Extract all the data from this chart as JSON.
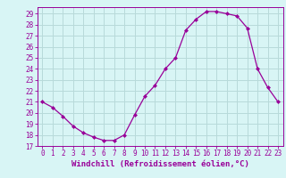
{
  "x": [
    0,
    1,
    2,
    3,
    4,
    5,
    6,
    7,
    8,
    9,
    10,
    11,
    12,
    13,
    14,
    15,
    16,
    17,
    18,
    19,
    20,
    21,
    22,
    23
  ],
  "y": [
    21.0,
    20.5,
    19.7,
    18.8,
    18.2,
    17.8,
    17.5,
    17.5,
    18.0,
    19.8,
    21.5,
    22.5,
    24.0,
    25.0,
    27.5,
    28.5,
    29.2,
    29.2,
    29.0,
    28.8,
    27.7,
    24.0,
    22.3,
    21.0
  ],
  "line_color": "#990099",
  "marker": "D",
  "marker_size": 2.0,
  "bg_color": "#d8f5f5",
  "grid_color": "#b8dada",
  "xlabel": "Windchill (Refroidissement éolien,°C)",
  "xlabel_color": "#990099",
  "tick_color": "#990099",
  "ylim": [
    17,
    29.6
  ],
  "xlim": [
    -0.5,
    23.5
  ],
  "yticks": [
    17,
    18,
    19,
    20,
    21,
    22,
    23,
    24,
    25,
    26,
    27,
    28,
    29
  ],
  "xticks": [
    0,
    1,
    2,
    3,
    4,
    5,
    6,
    7,
    8,
    9,
    10,
    11,
    12,
    13,
    14,
    15,
    16,
    17,
    18,
    19,
    20,
    21,
    22,
    23
  ],
  "tick_fontsize": 5.5,
  "xlabel_fontsize": 6.5
}
